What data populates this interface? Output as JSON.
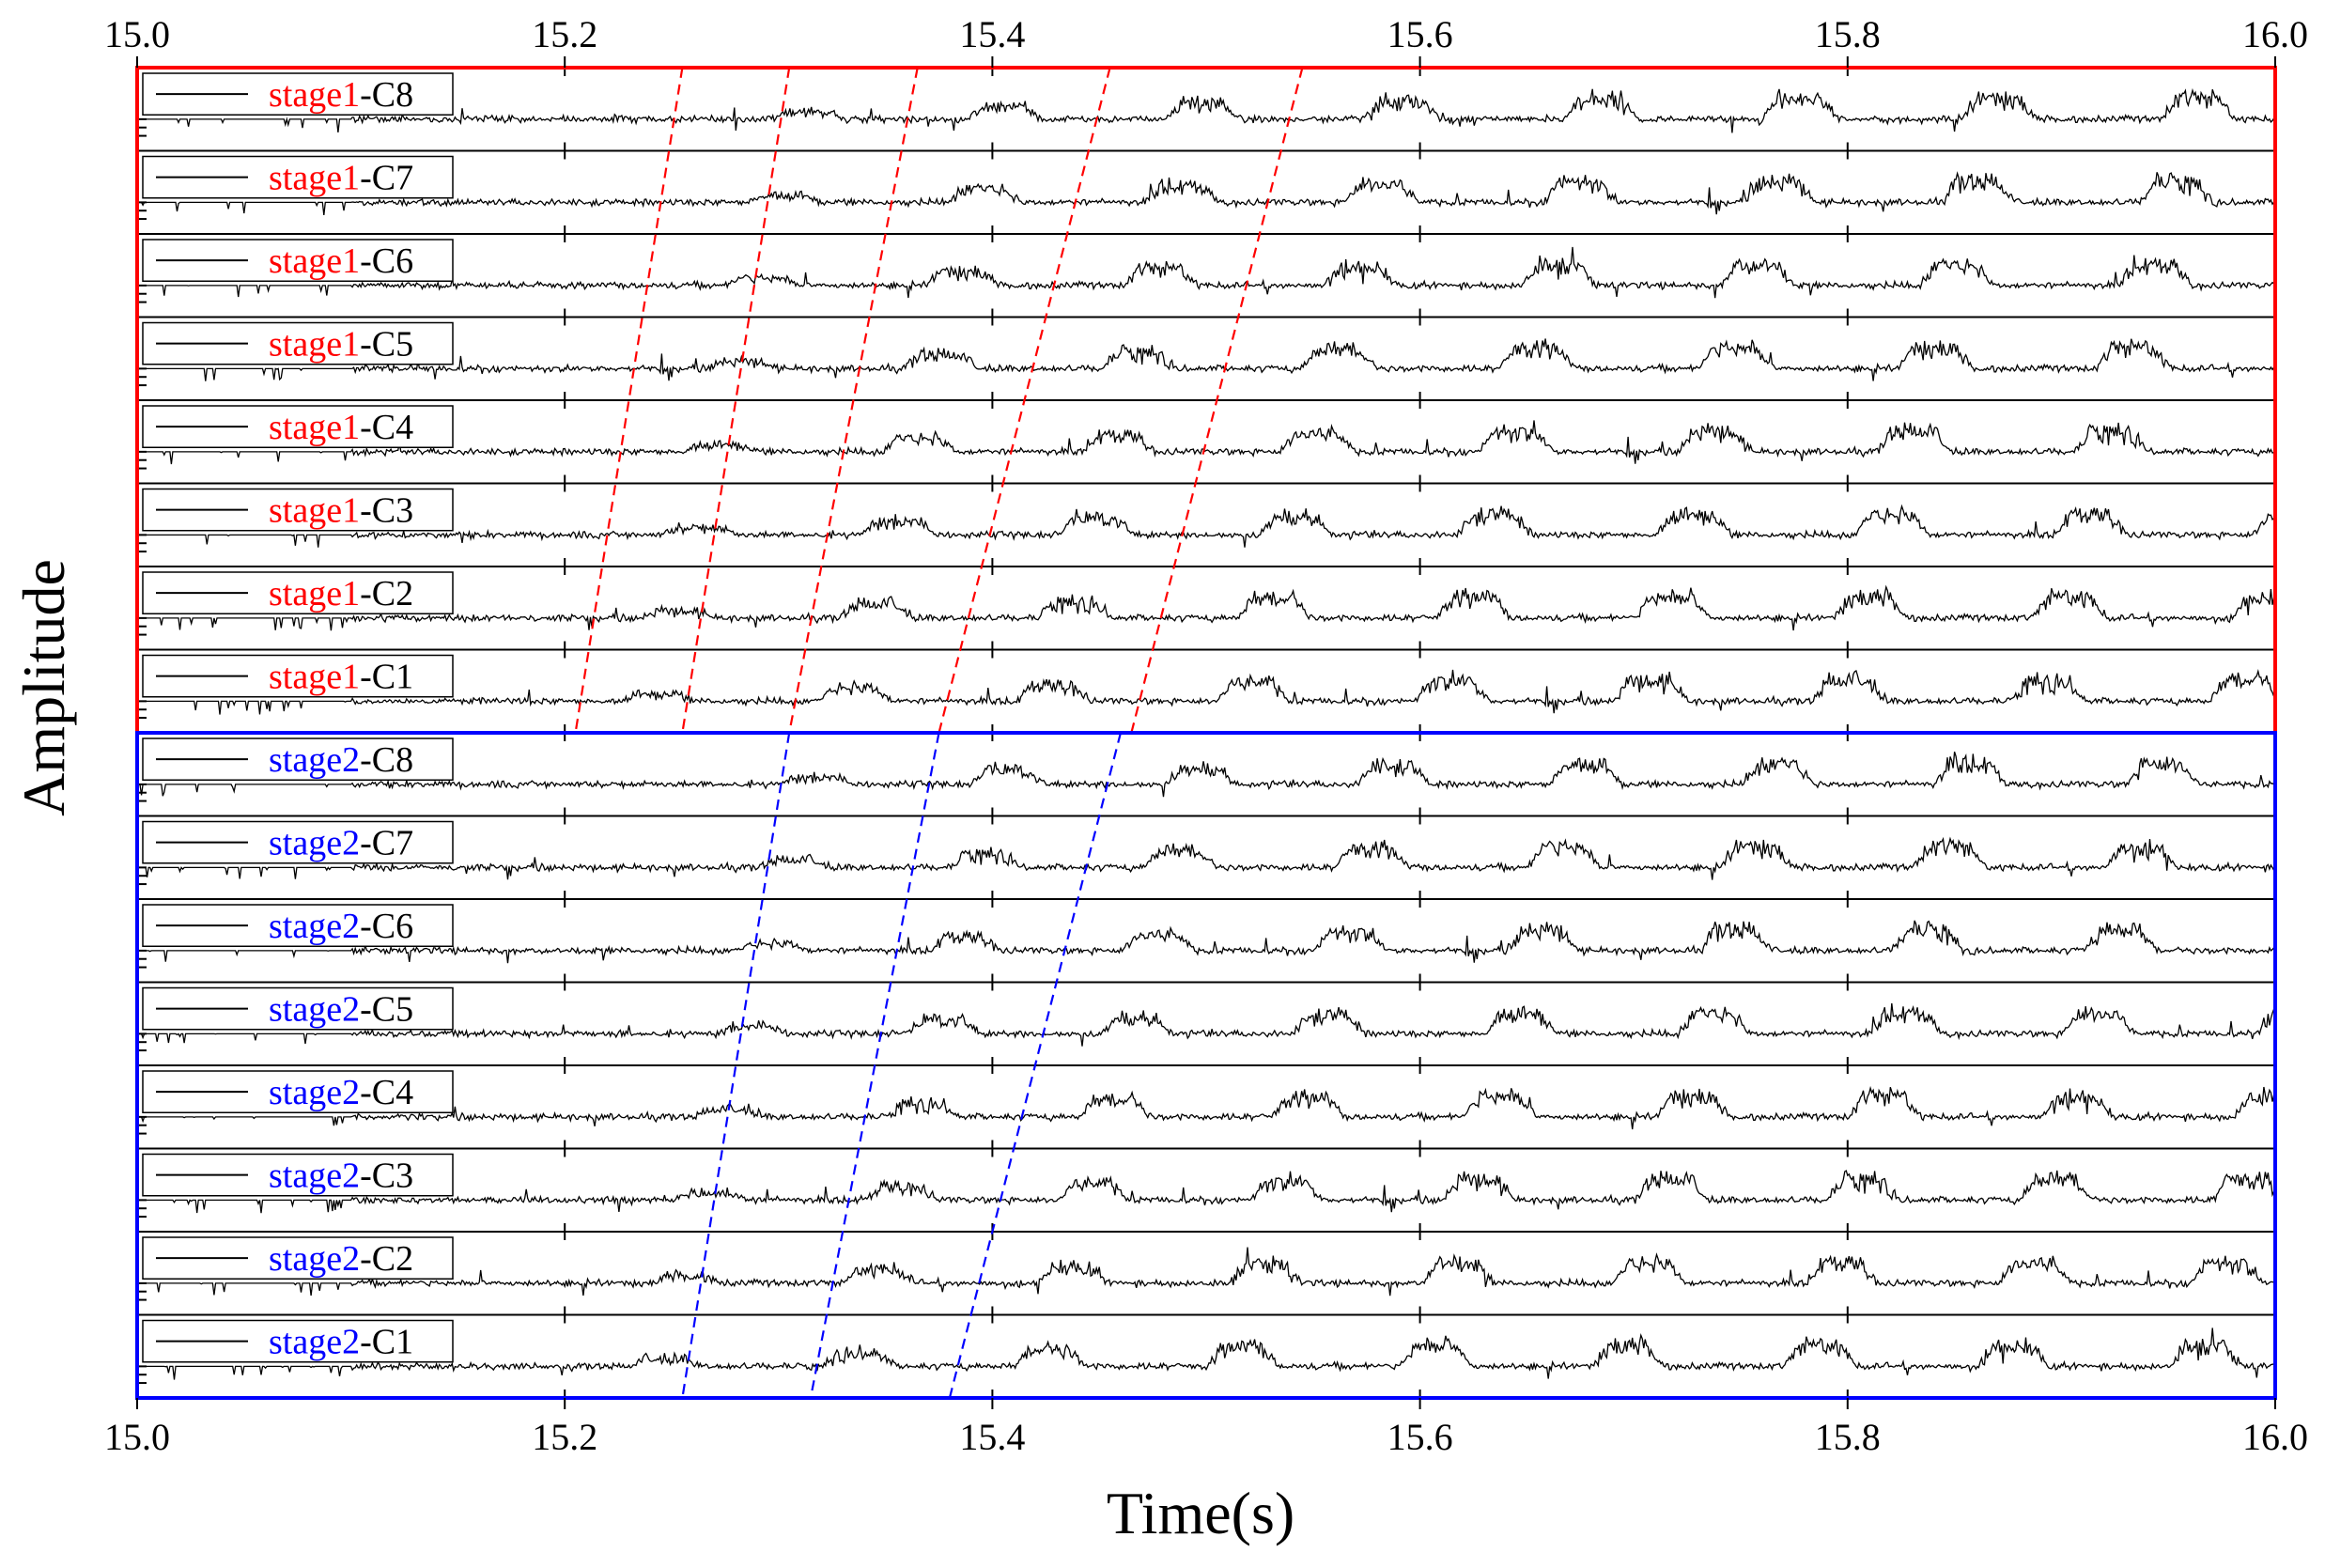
{
  "chart_data": {
    "type": "line",
    "title": "",
    "xlabel": "Time(s)",
    "ylabel": "Amplitude",
    "xlim": [
      15.0,
      16.0
    ],
    "x_ticks": [
      "15.0",
      "15.2",
      "15.4",
      "15.6",
      "15.8",
      "16.0"
    ],
    "grid": false,
    "legend": "top-left of each channel panel",
    "colors": {
      "stage1": "#ff0000",
      "stage2": "#0000ff",
      "trace": "#000000",
      "axis": "#000000"
    },
    "groups": [
      {
        "name": "stage1",
        "color": "#ff0000",
        "legend_suffix": "-C",
        "channels": [
          "stage1-C8",
          "stage1-C7",
          "stage1-C6",
          "stage1-C5",
          "stage1-C4",
          "stage1-C3",
          "stage1-C2",
          "stage1-C1"
        ],
        "panels": [
          {
            "prefix": "stage1",
            "suffix": "-C8"
          },
          {
            "prefix": "stage1",
            "suffix": "-C7"
          },
          {
            "prefix": "stage1",
            "suffix": "-C6"
          },
          {
            "prefix": "stage1",
            "suffix": "-C5"
          },
          {
            "prefix": "stage1",
            "suffix": "-C4"
          },
          {
            "prefix": "stage1",
            "suffix": "-C3"
          },
          {
            "prefix": "stage1",
            "suffix": "-C2"
          },
          {
            "prefix": "stage1",
            "suffix": "-C1"
          }
        ],
        "first_burst_times_s": [
          15.3,
          15.29,
          15.28,
          15.27,
          15.26,
          15.25,
          15.24,
          15.23
        ],
        "burst_period_s": 0.093,
        "propagation_lines_x_top_to_bottom": [
          [
            15.255,
            15.205
          ],
          [
            15.305,
            15.255
          ],
          [
            15.365,
            15.305
          ],
          [
            15.455,
            15.375
          ],
          [
            15.545,
            15.465
          ]
        ]
      },
      {
        "name": "stage2",
        "color": "#0000ff",
        "legend_suffix": "-C",
        "channels": [
          "stage2-C8",
          "stage2-C7",
          "stage2-C6",
          "stage2-C5",
          "stage2-C4",
          "stage2-C3",
          "stage2-C2",
          "stage2-C1"
        ],
        "panels": [
          {
            "prefix": "stage2",
            "suffix": "-C8"
          },
          {
            "prefix": "stage2",
            "suffix": "-C7"
          },
          {
            "prefix": "stage2",
            "suffix": "-C6"
          },
          {
            "prefix": "stage2",
            "suffix": "-C5"
          },
          {
            "prefix": "stage2",
            "suffix": "-C4"
          },
          {
            "prefix": "stage2",
            "suffix": "-C3"
          },
          {
            "prefix": "stage2",
            "suffix": "-C2"
          },
          {
            "prefix": "stage2",
            "suffix": "-C1"
          }
        ],
        "first_burst_times_s": [
          15.305,
          15.295,
          15.285,
          15.275,
          15.265,
          15.255,
          15.245,
          15.235
        ],
        "burst_period_s": 0.09,
        "propagation_lines_x_top_to_bottom": [
          [
            15.305,
            15.255
          ],
          [
            15.375,
            15.315
          ],
          [
            15.46,
            15.38
          ]
        ]
      }
    ]
  }
}
